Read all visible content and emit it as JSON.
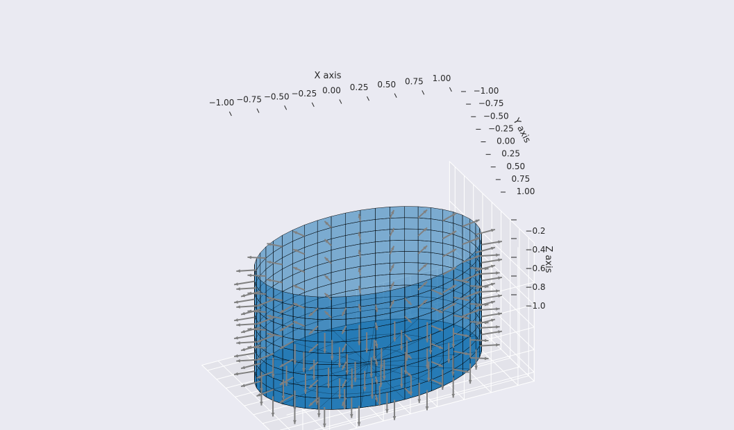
{
  "chart_data": {
    "type": "surface3d",
    "title": "",
    "subtitle": "",
    "xlabel": "X axis",
    "ylabel": "Y axis",
    "zlabel": "Z axis",
    "xlim": [
      -1.0,
      1.0
    ],
    "ylim": [
      -1.0,
      1.0
    ],
    "zlim": [
      -1.0,
      0.0
    ],
    "x_ticks": [
      "−1.00",
      "−0.75",
      "−0.50",
      "−0.25",
      "0.00",
      "0.25",
      "0.50",
      "0.75",
      "1.00"
    ],
    "y_ticks": [
      "−1.00",
      "−0.75",
      "−0.50",
      "−0.25",
      "0.00",
      "0.25",
      "0.50",
      "0.75",
      "1.00"
    ],
    "z_ticks": [
      "−0.2",
      "−0.4",
      "−0.6",
      "−0.8",
      "−1.0"
    ],
    "surface": {
      "shape": "closed cylinder (side wall and bottom disk)",
      "radius": 1.0,
      "z_range": [
        -1.0,
        0.0
      ],
      "face_color": "#1f77b4",
      "edge_color": "#000000"
    },
    "quiver": {
      "description": "unit normal vectors on the surface",
      "color": "#808080"
    },
    "grid": true,
    "background": "#eaeaf2",
    "pane_color": "#eaeaf2",
    "grid_color": "#ffffff"
  }
}
